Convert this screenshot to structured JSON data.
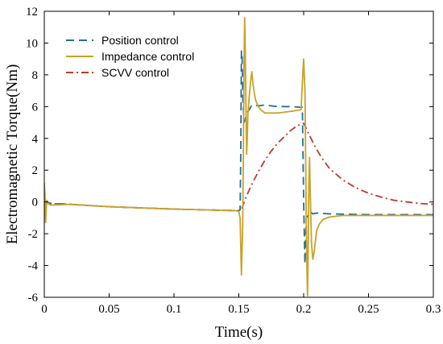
{
  "chart_data": {
    "type": "line",
    "title": "",
    "xlabel": "Time(s)",
    "ylabel": "Electromagnetic Torque(Nm)",
    "xlim": [
      0,
      0.3
    ],
    "ylim": [
      -6,
      12
    ],
    "xticks": [
      0,
      0.05,
      0.1,
      0.15,
      0.2,
      0.25,
      0.3
    ],
    "xtick_labels": [
      "0",
      "0.05",
      "0.1",
      "0.15",
      "0.2",
      "0.25",
      "0.3"
    ],
    "yticks": [
      -6,
      -4,
      -2,
      0,
      2,
      4,
      6,
      8,
      10,
      12
    ],
    "ytick_labels": [
      "-6",
      "-4",
      "-2",
      "0",
      "2",
      "4",
      "6",
      "8",
      "10",
      "12"
    ],
    "grid": false,
    "legend_position": "top-left",
    "series": [
      {
        "name": "Position control",
        "color": "#1f6f9f",
        "dash": "dashed",
        "x": [
          0,
          0.002,
          0.005,
          0.02,
          0.05,
          0.1,
          0.15,
          0.151,
          0.1515,
          0.152,
          0.1525,
          0.153,
          0.154,
          0.155,
          0.156,
          0.158,
          0.16,
          0.165,
          0.17,
          0.18,
          0.19,
          0.199,
          0.1995,
          0.2,
          0.2005,
          0.201,
          0.2015,
          0.202,
          0.203,
          0.204,
          0.205,
          0.207,
          0.21,
          0.22,
          0.25,
          0.3
        ],
        "y": [
          0.1,
          0.0,
          -0.1,
          -0.15,
          -0.3,
          -0.45,
          -0.55,
          -0.5,
          3.0,
          9.5,
          9.2,
          6.5,
          5.0,
          5.2,
          5.6,
          5.8,
          6.1,
          6.05,
          6.1,
          6.0,
          6.0,
          5.95,
          3.0,
          0.0,
          -2.0,
          -3.9,
          -2.5,
          -1.0,
          -0.9,
          -0.8,
          -0.6,
          -0.75,
          -0.7,
          -0.75,
          -0.8,
          -0.8
        ]
      },
      {
        "name": "Impedance control",
        "color": "#c9a227",
        "dash": "solid",
        "x": [
          0,
          0.0005,
          0.001,
          0.0015,
          0.002,
          0.003,
          0.005,
          0.02,
          0.05,
          0.1,
          0.148,
          0.15,
          0.151,
          0.152,
          0.153,
          0.1535,
          0.154,
          0.1545,
          0.155,
          0.1555,
          0.156,
          0.1565,
          0.157,
          0.158,
          0.159,
          0.16,
          0.161,
          0.162,
          0.163,
          0.165,
          0.167,
          0.17,
          0.175,
          0.18,
          0.19,
          0.198,
          0.199,
          0.2,
          0.201,
          0.2015,
          0.202,
          0.2025,
          0.203,
          0.2035,
          0.204,
          0.2045,
          0.205,
          0.206,
          0.207,
          0.208,
          0.209,
          0.21,
          0.212,
          0.215,
          0.22,
          0.23,
          0.25,
          0.3
        ],
        "y": [
          1.2,
          0.5,
          -1.3,
          -0.4,
          0.1,
          -0.1,
          -0.2,
          -0.15,
          -0.3,
          -0.45,
          -0.55,
          -0.6,
          -1.0,
          -4.6,
          -1.5,
          3.0,
          8.5,
          11.6,
          9.5,
          6.0,
          3.0,
          4.0,
          5.5,
          6.6,
          7.5,
          8.2,
          7.4,
          6.8,
          6.4,
          6.0,
          5.8,
          5.6,
          5.6,
          5.6,
          5.7,
          5.8,
          7.5,
          9.0,
          7.0,
          3.0,
          -1.0,
          -4.0,
          -5.9,
          -3.0,
          1.0,
          2.8,
          1.0,
          -2.5,
          -3.6,
          -3.2,
          -2.5,
          -1.8,
          -1.4,
          -1.1,
          -0.95,
          -0.85,
          -0.85,
          -0.85
        ]
      },
      {
        "name": "SCVV control",
        "color": "#c0392b",
        "dash": "dashdot",
        "x": [
          0,
          0.005,
          0.02,
          0.05,
          0.1,
          0.15,
          0.152,
          0.155,
          0.16,
          0.165,
          0.17,
          0.175,
          0.18,
          0.185,
          0.19,
          0.195,
          0.2,
          0.205,
          0.21,
          0.215,
          0.22,
          0.23,
          0.24,
          0.25,
          0.26,
          0.27,
          0.28,
          0.29,
          0.3
        ],
        "y": [
          0.0,
          -0.1,
          -0.15,
          -0.3,
          -0.45,
          -0.55,
          -0.5,
          0.2,
          1.1,
          1.9,
          2.6,
          3.2,
          3.7,
          4.1,
          4.5,
          4.8,
          4.95,
          4.1,
          3.3,
          2.65,
          2.1,
          1.4,
          0.9,
          0.55,
          0.3,
          0.1,
          0.0,
          -0.1,
          -0.15
        ]
      }
    ]
  }
}
